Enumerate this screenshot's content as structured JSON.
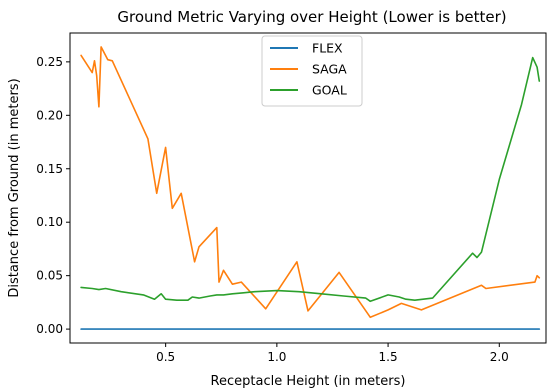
{
  "chart_data": {
    "type": "line",
    "title": "Ground Metric Varying over Height (Lower is better)",
    "xlabel": "Receptacle Height (in meters)",
    "ylabel": "Distance from Ground (in meters)",
    "xlim": [
      0.07,
      2.21
    ],
    "ylim": [
      -0.013,
      0.277
    ],
    "xticks": [
      0.5,
      1.0,
      1.5,
      2.0
    ],
    "xtick_labels": [
      "0.5",
      "1.0",
      "1.5",
      "2.0"
    ],
    "yticks": [
      0.0,
      0.05,
      0.1,
      0.15,
      0.2,
      0.25
    ],
    "ytick_labels": [
      "0.00",
      "0.05",
      "0.10",
      "0.15",
      "0.20",
      "0.25"
    ],
    "grid": false,
    "legend_position": "top-center",
    "series": [
      {
        "name": "FLEX",
        "color": "#1f77b4",
        "x": [
          0.12,
          0.5,
          1.0,
          1.5,
          2.0,
          2.18
        ],
        "y": [
          0.0,
          0.0,
          0.0,
          0.0,
          0.0,
          0.0
        ]
      },
      {
        "name": "SAGA",
        "color": "#ff7f0e",
        "x": [
          0.12,
          0.17,
          0.18,
          0.19,
          0.2,
          0.21,
          0.24,
          0.26,
          0.42,
          0.46,
          0.5,
          0.53,
          0.57,
          0.63,
          0.65,
          0.73,
          0.74,
          0.76,
          0.8,
          0.84,
          0.95,
          1.09,
          1.14,
          1.28,
          1.42,
          1.5,
          1.56,
          1.65,
          1.92,
          1.94,
          2.16,
          2.17,
          2.18
        ],
        "y": [
          0.256,
          0.24,
          0.251,
          0.237,
          0.208,
          0.264,
          0.252,
          0.251,
          0.178,
          0.127,
          0.17,
          0.113,
          0.127,
          0.063,
          0.077,
          0.095,
          0.044,
          0.055,
          0.042,
          0.044,
          0.019,
          0.063,
          0.017,
          0.053,
          0.011,
          0.018,
          0.024,
          0.018,
          0.041,
          0.038,
          0.044,
          0.05,
          0.048
        ]
      },
      {
        "name": "GOAL",
        "color": "#2ca02c",
        "x": [
          0.12,
          0.17,
          0.2,
          0.23,
          0.3,
          0.4,
          0.45,
          0.48,
          0.5,
          0.55,
          0.6,
          0.62,
          0.65,
          0.7,
          0.73,
          0.76,
          0.8,
          0.85,
          0.9,
          1.0,
          1.1,
          1.2,
          1.3,
          1.4,
          1.42,
          1.5,
          1.55,
          1.58,
          1.62,
          1.7,
          1.88,
          1.9,
          1.92,
          2.0,
          2.1,
          2.15,
          2.17,
          2.18
        ],
        "y": [
          0.039,
          0.038,
          0.037,
          0.038,
          0.035,
          0.032,
          0.028,
          0.033,
          0.028,
          0.027,
          0.027,
          0.03,
          0.029,
          0.031,
          0.032,
          0.032,
          0.033,
          0.034,
          0.035,
          0.036,
          0.035,
          0.033,
          0.031,
          0.029,
          0.026,
          0.032,
          0.03,
          0.028,
          0.027,
          0.029,
          0.071,
          0.067,
          0.072,
          0.14,
          0.21,
          0.254,
          0.245,
          0.232
        ]
      }
    ]
  }
}
